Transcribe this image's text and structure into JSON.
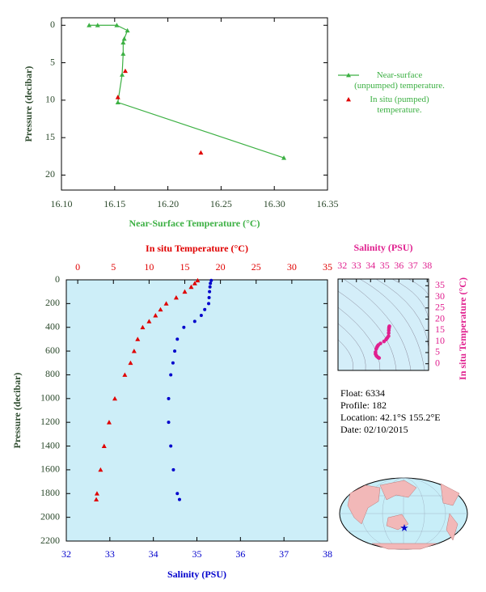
{
  "chart_data": [
    {
      "type": "line",
      "x_label": "Near-Surface Temperature (°C)",
      "y_label": "Pressure (decibar)",
      "xlim": [
        16.1,
        16.35
      ],
      "xticks": [
        {
          "value": 16.1,
          "label": "16.10"
        },
        16.15,
        {
          "value": 16.2,
          "label": "16.20"
        },
        16.25,
        {
          "value": 16.3,
          "label": "16.30"
        },
        16.35
      ],
      "ylim": [
        -1,
        22
      ],
      "yticks": [
        0,
        5,
        10,
        15,
        20
      ],
      "y_inverted": true,
      "legend": "right",
      "series": [
        {
          "name": "Near-surface (unpumped) temperature.",
          "color": "#3cb043",
          "line": true,
          "marker": "triangle",
          "x": [
            16.126,
            16.134,
            16.152,
            16.162,
            16.159,
            16.158,
            16.158,
            16.157,
            16.153,
            16.309
          ],
          "y": [
            0,
            0,
            0,
            0.7,
            1.8,
            2.3,
            3.8,
            6.6,
            10.3,
            17.7
          ]
        },
        {
          "name": "In situ (pumped) temperature.",
          "color": "#e00000",
          "line": false,
          "marker": "triangle",
          "x": [
            16.16,
            16.153,
            16.231
          ],
          "y": [
            6.1,
            9.6,
            17.0
          ]
        }
      ]
    },
    {
      "type": "profile",
      "x_label": "Salinity (PSU)",
      "x2_label": "In situ Temperature (°C)",
      "y_label": "Pressure (decibar)",
      "xlim": [
        32,
        38
      ],
      "xticks": [
        32,
        33,
        34,
        35,
        36,
        37,
        38
      ],
      "x2lim": [
        -1.6,
        35
      ],
      "x2ticks": [
        0,
        5,
        10,
        15,
        20,
        25,
        30,
        35
      ],
      "ylim": [
        0,
        2200
      ],
      "yticks": [
        0,
        200,
        400,
        600,
        800,
        1000,
        1200,
        1400,
        1600,
        1800,
        2000,
        2200
      ],
      "y_inverted": true,
      "y": [
        5,
        30,
        60,
        100,
        150,
        200,
        250,
        300,
        350,
        400,
        500,
        600,
        700,
        800,
        1000,
        1200,
        1400,
        1600,
        1800,
        1850
      ],
      "series": [
        {
          "axis": "x2",
          "color": "#e00000",
          "marker": "triangle",
          "values": [
            16.8,
            16.4,
            15.9,
            15.0,
            13.8,
            12.4,
            11.6,
            10.9,
            10.0,
            9.1,
            8.4,
            7.9,
            7.4,
            6.6,
            5.2,
            4.4,
            3.7,
            3.2,
            2.7,
            2.6
          ]
        },
        {
          "axis": "x",
          "color": "#0000cc",
          "marker": "circle",
          "values": [
            35.33,
            35.31,
            35.3,
            35.29,
            35.28,
            35.27,
            35.18,
            35.1,
            34.95,
            34.7,
            34.55,
            34.49,
            34.45,
            34.4,
            34.35,
            34.35,
            34.4,
            34.46,
            34.55,
            34.6
          ]
        }
      ]
    },
    {
      "type": "ts",
      "x_label": "Salinity (PSU)",
      "y_label": "In situ Temperature (°C)",
      "xlim": [
        31.7,
        38.1
      ],
      "xticks": [
        32,
        33,
        34,
        35,
        36,
        37,
        38
      ],
      "ylim": [
        -3,
        38
      ],
      "yticks": [
        0,
        5,
        10,
        15,
        20,
        25,
        30,
        35
      ],
      "color": "#e0208f"
    }
  ],
  "float_info": [
    "Float:  6334",
    "Profile:  182",
    "Location:  42.1°S  155.2°E",
    "Date:  02/10/2015"
  ]
}
